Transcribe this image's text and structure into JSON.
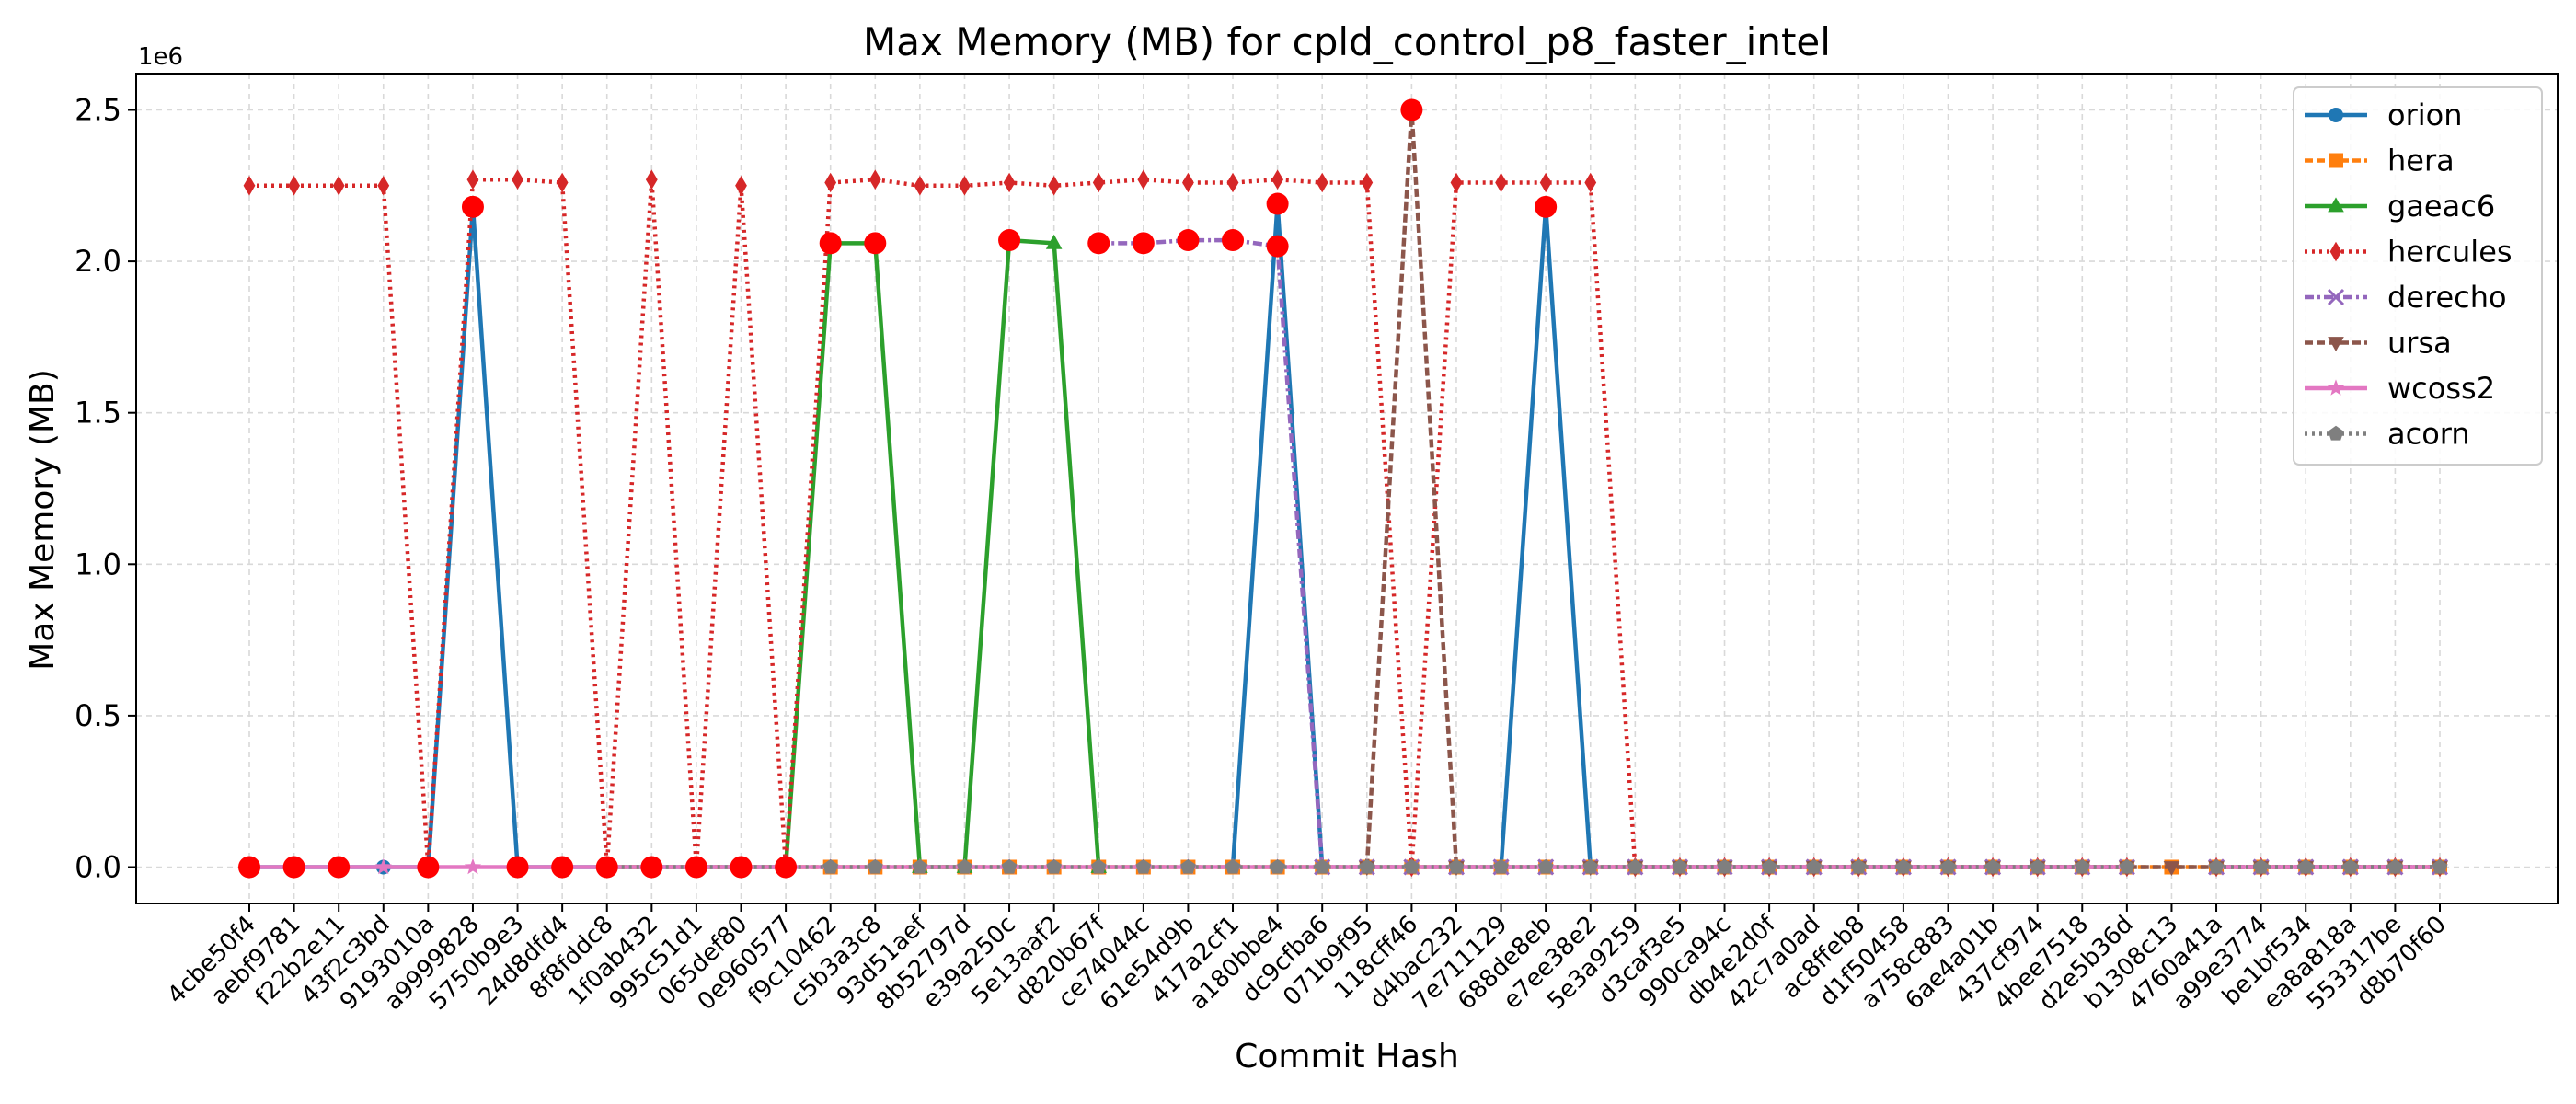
{
  "chart_data": {
    "type": "line",
    "title": "Max Memory (MB) for cpld_control_p8_faster_intel",
    "xlabel": "Commit Hash",
    "ylabel": "Max Memory (MB)",
    "y_offset_label": "1e6",
    "ylim": [
      -0.12,
      2.62
    ],
    "y_ticks": [
      0.0,
      0.5,
      1.0,
      1.5,
      2.0,
      2.5
    ],
    "y_tick_labels": [
      "0.0",
      "0.5",
      "1.0",
      "1.5",
      "2.0",
      "2.5"
    ],
    "grid": true,
    "legend_position": "top-right",
    "categories": [
      "4cbe50f4",
      "aebf9781",
      "f22b2e11",
      "43f2c3bd",
      "9193010a",
      "a9999828",
      "5750b9e3",
      "24d8dfd4",
      "8f8fddc8",
      "1f0ab432",
      "995c51d1",
      "065def80",
      "0e960577",
      "f9c10462",
      "c5b3a3c8",
      "93d51aef",
      "8b52797d",
      "e39a250c",
      "5e13aaf2",
      "d820b67f",
      "ce74044c",
      "61e54d9b",
      "417a2cf1",
      "a180bbe4",
      "dc9cfba6",
      "071b9f95",
      "118cff46",
      "d4bac232",
      "7e711129",
      "688de8eb",
      "e7ee38e2",
      "5e3a9259",
      "d3caf3e5",
      "990ca94c",
      "db4e2d0f",
      "42c7a0ad",
      "ac8ffeb8",
      "d1f50458",
      "a758c883",
      "6ae4a01b",
      "437cf974",
      "4bee7518",
      "d2e5b36d",
      "b1308c13",
      "4760a41a",
      "a99e3774",
      "be1bf534",
      "ea8a818a",
      "553317be",
      "d8b70f60"
    ],
    "series": [
      {
        "name": "orion",
        "color": "#1f77b4",
        "dash": "",
        "marker": "circle",
        "values": [
          0,
          0,
          0,
          0,
          0,
          2.18,
          0,
          0,
          0,
          0,
          0,
          0,
          0,
          null,
          null,
          null,
          null,
          null,
          null,
          null,
          null,
          null,
          0,
          2.19,
          0,
          null,
          null,
          null,
          0,
          2.18,
          0,
          null,
          null,
          null,
          null,
          null,
          null,
          null,
          null,
          null,
          null,
          null,
          null,
          null,
          null,
          null,
          null,
          null,
          null,
          null
        ]
      },
      {
        "name": "hera",
        "color": "#ff7f0e",
        "dash": "9,4",
        "marker": "square",
        "values": [
          null,
          null,
          null,
          null,
          null,
          null,
          null,
          null,
          0,
          0,
          0,
          0,
          0,
          0,
          0,
          0,
          0,
          0,
          0,
          0,
          0,
          0,
          0,
          0,
          0,
          0,
          0,
          0,
          0,
          0,
          0,
          0,
          0,
          0,
          0,
          0,
          0,
          0,
          0,
          0,
          0,
          0,
          0,
          0,
          0,
          0,
          0,
          0,
          0,
          0
        ]
      },
      {
        "name": "gaeac6",
        "color": "#2ca02c",
        "dash": "",
        "marker": "triangle",
        "values": [
          null,
          null,
          null,
          null,
          null,
          null,
          null,
          null,
          null,
          null,
          null,
          null,
          0,
          2.06,
          2.06,
          0,
          0,
          2.07,
          2.06,
          0,
          null,
          null,
          null,
          null,
          null,
          null,
          null,
          null,
          null,
          null,
          null,
          null,
          null,
          null,
          null,
          null,
          null,
          null,
          null,
          null,
          null,
          null,
          null,
          null,
          null,
          null,
          null,
          null,
          null,
          null
        ]
      },
      {
        "name": "hercules",
        "color": "#d62728",
        "dash": "3,5",
        "marker": "diamond",
        "values": [
          2.25,
          2.25,
          2.25,
          2.25,
          0,
          2.27,
          2.27,
          2.26,
          0,
          2.27,
          0,
          2.25,
          0,
          2.26,
          2.27,
          2.25,
          2.25,
          2.26,
          2.25,
          2.26,
          2.27,
          2.26,
          2.26,
          2.27,
          2.26,
          2.26,
          0,
          2.26,
          2.26,
          2.26,
          2.26,
          0,
          0,
          0,
          0,
          0,
          0,
          0,
          0,
          0,
          0,
          0,
          0,
          null,
          0,
          0,
          0,
          0,
          0,
          0
        ]
      },
      {
        "name": "derecho",
        "color": "#9467bd",
        "dash": "10,4,3,4",
        "marker": "x",
        "values": [
          null,
          null,
          null,
          null,
          null,
          null,
          null,
          null,
          null,
          null,
          null,
          null,
          null,
          null,
          null,
          null,
          null,
          null,
          null,
          2.06,
          2.06,
          2.07,
          2.07,
          2.05,
          0,
          0,
          0,
          0,
          0,
          0,
          0,
          0,
          0,
          0,
          0,
          0,
          0,
          0,
          0,
          0,
          0,
          0,
          0,
          null,
          0,
          0,
          0,
          0,
          0,
          0
        ]
      },
      {
        "name": "ursa",
        "color": "#8c564b",
        "dash": "9,4",
        "marker": "triangle-down",
        "values": [
          null,
          null,
          null,
          null,
          null,
          null,
          null,
          null,
          null,
          null,
          null,
          null,
          null,
          null,
          null,
          null,
          null,
          null,
          null,
          null,
          null,
          null,
          null,
          null,
          null,
          0,
          2.5,
          0,
          null,
          null,
          0,
          0,
          0,
          0,
          0,
          0,
          0,
          0,
          0,
          0,
          0,
          0,
          0,
          0,
          0,
          0,
          0,
          0,
          0,
          0
        ]
      },
      {
        "name": "wcoss2",
        "color": "#e377c2",
        "dash": "",
        "marker": "star",
        "values": [
          0,
          0,
          0,
          0,
          0,
          0,
          0,
          0,
          0,
          0,
          0,
          0,
          0,
          0,
          0,
          0,
          0,
          0,
          0,
          0,
          0,
          0,
          0,
          0,
          0,
          0,
          0,
          0,
          0,
          0,
          0,
          0,
          0,
          0,
          0,
          0,
          0,
          0,
          0,
          0,
          0,
          0,
          0,
          null,
          0,
          0,
          0,
          0,
          0,
          0
        ]
      },
      {
        "name": "acorn",
        "color": "#7f7f7f",
        "dash": "3,5",
        "marker": "pentagon",
        "values": [
          null,
          null,
          null,
          null,
          null,
          null,
          null,
          null,
          0,
          0,
          0,
          0,
          0,
          0,
          0,
          0,
          0,
          0,
          0,
          0,
          0,
          0,
          0,
          0,
          0,
          0,
          0,
          0,
          0,
          0,
          0,
          0,
          0,
          0,
          0,
          0,
          0,
          0,
          0,
          0,
          0,
          0,
          0,
          null,
          0,
          0,
          0,
          0,
          0,
          0
        ]
      }
    ],
    "highlight_points": [
      {
        "index": 0,
        "value": 0
      },
      {
        "index": 1,
        "value": 0
      },
      {
        "index": 2,
        "value": 0
      },
      {
        "index": 4,
        "value": 0
      },
      {
        "index": 5,
        "value": 2.18
      },
      {
        "index": 6,
        "value": 0
      },
      {
        "index": 7,
        "value": 0
      },
      {
        "index": 8,
        "value": 0
      },
      {
        "index": 9,
        "value": 0
      },
      {
        "index": 10,
        "value": 0
      },
      {
        "index": 11,
        "value": 0
      },
      {
        "index": 12,
        "value": 0
      },
      {
        "index": 13,
        "value": 2.06
      },
      {
        "index": 14,
        "value": 2.06
      },
      {
        "index": 17,
        "value": 2.07
      },
      {
        "index": 19,
        "value": 2.06
      },
      {
        "index": 20,
        "value": 2.06
      },
      {
        "index": 21,
        "value": 2.07
      },
      {
        "index": 22,
        "value": 2.07
      },
      {
        "index": 23,
        "value": 2.19
      },
      {
        "index": 23,
        "value": 2.05
      },
      {
        "index": 26,
        "value": 2.5
      },
      {
        "index": 29,
        "value": 2.18
      }
    ],
    "highlight_color": "#ff0000"
  }
}
